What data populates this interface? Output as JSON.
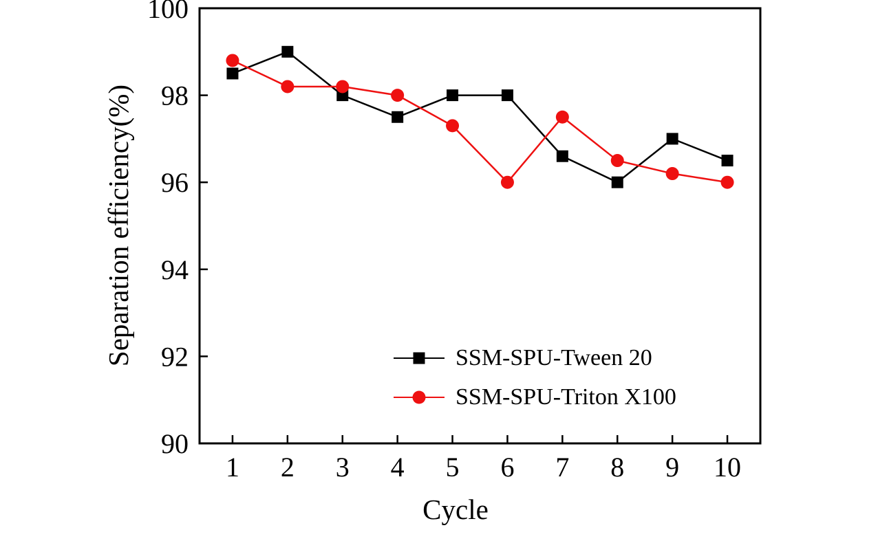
{
  "figure": {
    "background": "#ffffff"
  },
  "chart_data": {
    "type": "line",
    "xlabel": "Cycle",
    "ylabel": "Separation efficiency(%)",
    "x": [
      1,
      2,
      3,
      4,
      5,
      6,
      7,
      8,
      9,
      10
    ],
    "xticks": [
      1,
      2,
      3,
      4,
      5,
      6,
      7,
      8,
      9,
      10
    ],
    "yticks": [
      90,
      92,
      94,
      96,
      98,
      100
    ],
    "xlim": [
      0.4,
      10.6
    ],
    "ylim": [
      90,
      100
    ],
    "grid": false,
    "legend_position": "inside-lower-right",
    "series": [
      {
        "name": "SSM-SPU-Tween 20",
        "color": "#000000",
        "marker": "square",
        "values": [
          98.5,
          99.0,
          98.0,
          97.5,
          98.0,
          98.0,
          96.6,
          96.0,
          97.0,
          96.5
        ]
      },
      {
        "name": "SSM-SPU-Triton X100",
        "color": "#ee1111",
        "marker": "circle",
        "values": [
          98.8,
          98.2,
          98.2,
          98.0,
          97.3,
          96.0,
          97.5,
          96.5,
          96.2,
          96.0
        ]
      }
    ]
  }
}
